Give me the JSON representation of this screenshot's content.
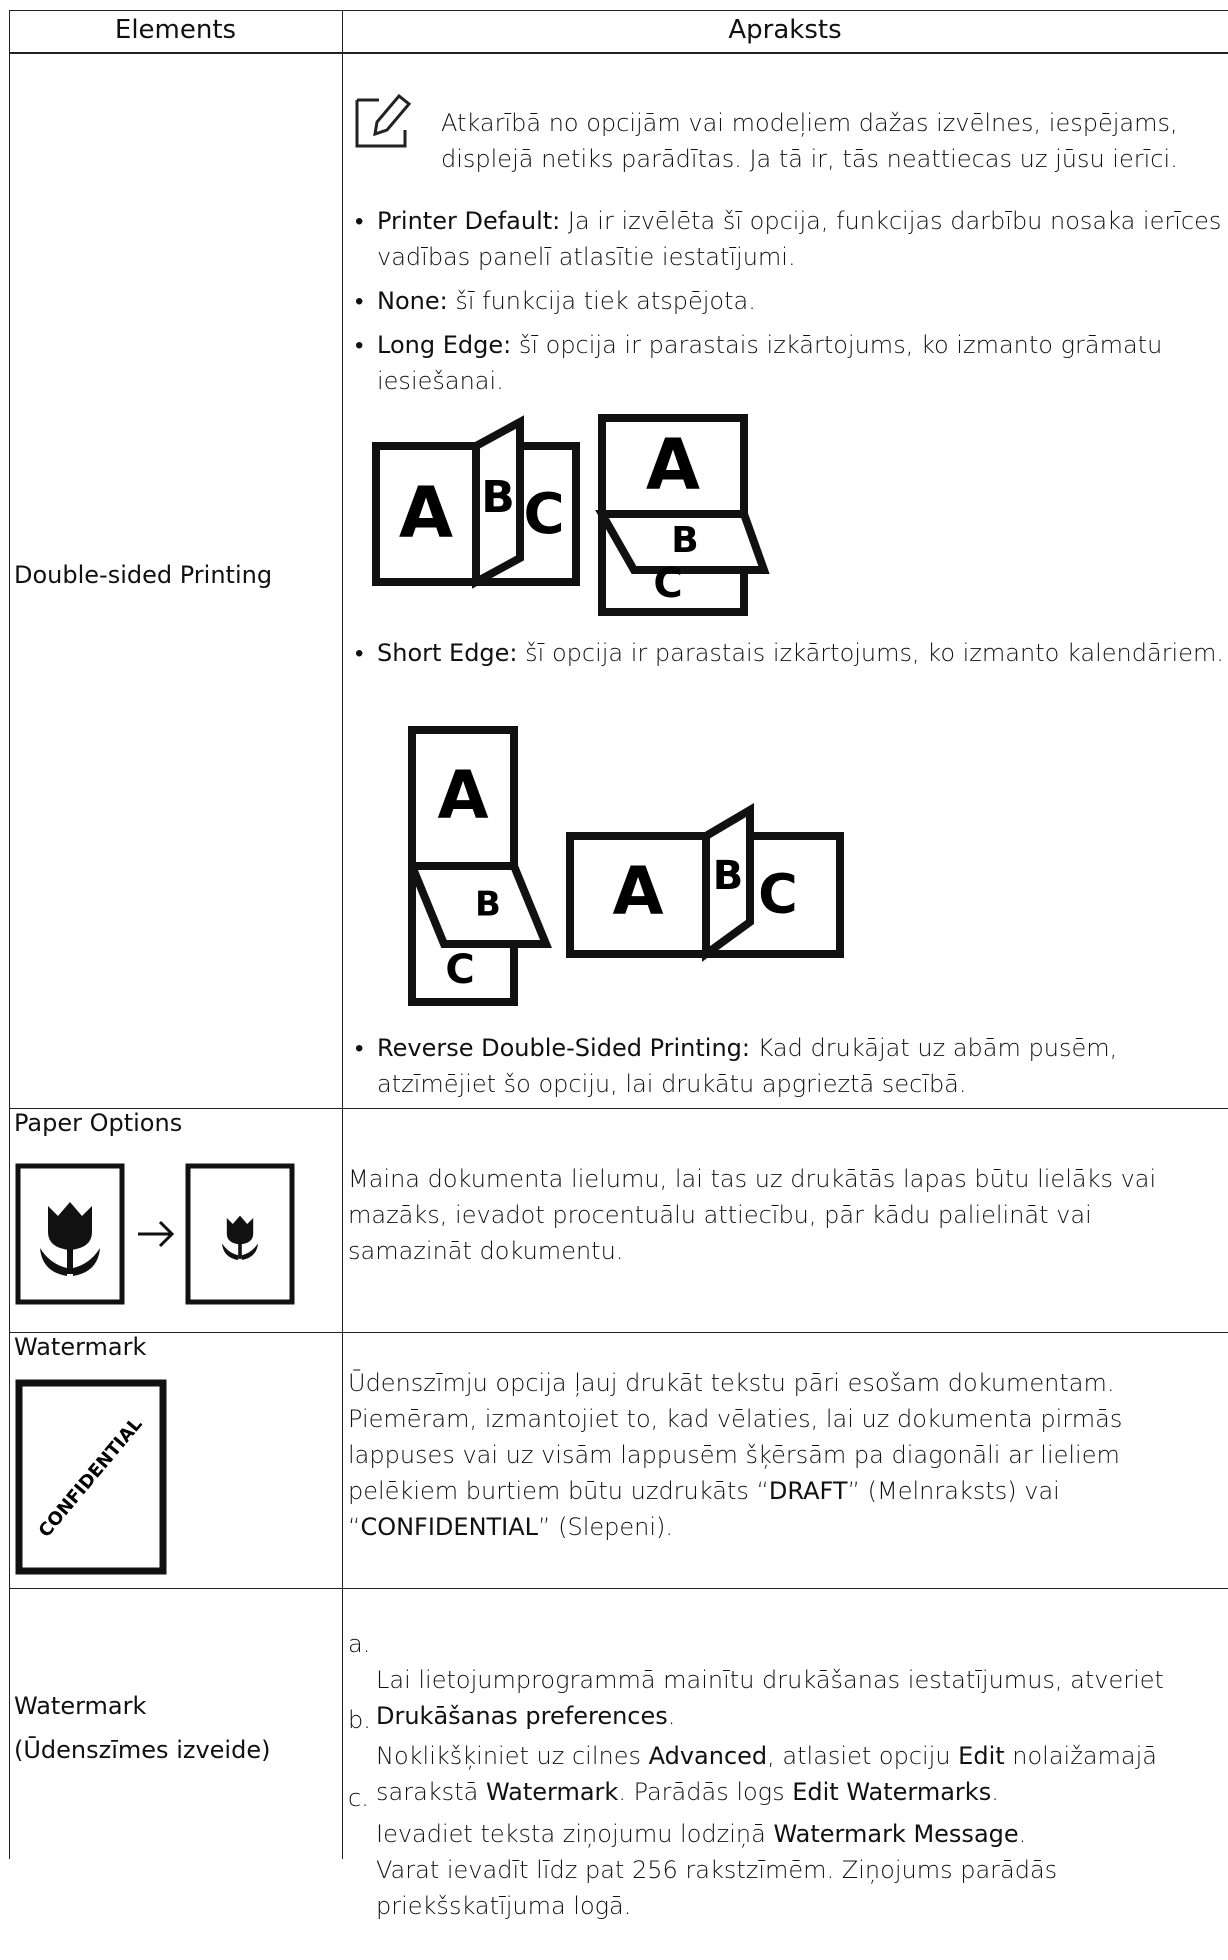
{
  "table": {
    "headers": [
      "Elements",
      "Apraksts"
    ],
    "rows": [
      {
        "element": "Double-sided Printing",
        "note": "Atkarībā no opcijām vai modeļiem dažas izvēlnes, iespējams, displejā netiks parādītas. Ja tā ir, tās neattiecas uz jūsu ierīci.",
        "items": [
          {
            "term": "Printer Default:",
            "text": " Ja ir izvēlēta šī opcija, funkcijas darbību nosaka ierīces vadības panelī atlasītie iestatījumi."
          },
          {
            "term": "None:",
            "text": " šī funkcija tiek atspējota."
          },
          {
            "term": "Long Edge:",
            "text": " šī opcija ir parastais izkārtojums, ko izmanto grāmatu iesiešanai."
          },
          {
            "term": "Short Edge:",
            "text": " šī opcija ir parastais izkārtojums, ko izmanto kalendāriem."
          },
          {
            "term": "Reverse Double-Sided Printing:",
            "text": " Kad drukājat uz abām pusēm, atzīmējiet šo opciju, lai drukātu apgrieztā secībā."
          }
        ],
        "illustration_letters": [
          "A",
          "B",
          "C"
        ]
      },
      {
        "element": "Paper Options",
        "description": [
          "Maina dokumenta lielumu, lai tas uz drukātās lapas būtu lielāks vai mazāks, ievadot procentuālu attiecību, pār kādu palielināt vai samazināt dokumentu."
        ]
      },
      {
        "element": "Watermark",
        "image_text": "CONFIDENTIAL",
        "description": [
          "Ūdenszīmju opcija ļauj drukāt tekstu pāri esošam dokumentam. Piemēram, izmantojiet to, kad vēlaties, lai uz dokumenta pirmās lappuses vai uz visām lappusēm šķērsām pa diagonāli ar lieliem pelēkiem burtiem būtu uzdrukāts “",
          "DRAFT",
          "” (Melnraksts) vai “",
          "CONFIDENTIAL",
          "” (Slepeni)."
        ]
      },
      {
        "element": "Watermark\n(Ūdenszīmes izveide)",
        "steps": [
          {
            "label": "a.",
            "parts": [
              "Lai lietojumprogrammā mainītu drukāšanas iestatījumus, atveriet ",
              "Drukāšanas preferences",
              "."
            ]
          },
          {
            "label": "b.",
            "parts": [
              "Noklikšķiniet uz cilnes ",
              "Advanced",
              ", atlasiet opciju ",
              "Edit",
              " nolaižamajā sarakstā ",
              "Watermark",
              ". Parādās logs ",
              "Edit Watermarks",
              "."
            ]
          },
          {
            "label": "c.",
            "parts": [
              "Ievadiet teksta ziņojumu lodziņā ",
              "Watermark Message",
              ".\nVarat ievadīt līdz pat 256 rakstzīmēm. Ziņojums parādās priekšskatījuma logā."
            ]
          }
        ]
      }
    ]
  }
}
